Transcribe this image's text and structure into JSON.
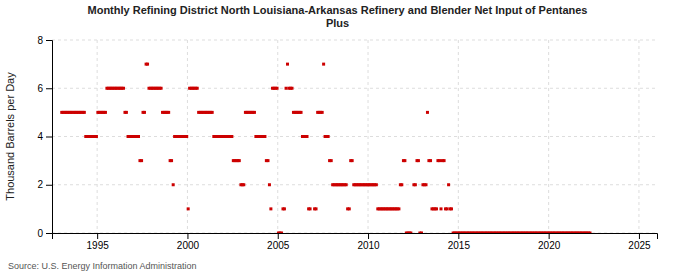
{
  "chart_data": {
    "type": "scatter",
    "title": "Monthly Refining District North Louisiana-Arkansas Refinery and Blender Net Input of Pentanes\nPlus",
    "ylabel": "Thousand Barrels per Day",
    "annotations": [
      "Source: U.S. Energy Information Administration"
    ],
    "color": "#cc0000",
    "marker": "square",
    "grid": true,
    "xlim": [
      1992.5,
      2026
    ],
    "ylim": [
      0,
      8
    ],
    "xticks": [
      1995,
      2000,
      2005,
      2010,
      2015,
      2020,
      2025
    ],
    "yticks": [
      0,
      2,
      4,
      6,
      8
    ],
    "x": [
      1993.04,
      1993.12,
      1993.21,
      1993.29,
      1993.37,
      1993.46,
      1993.54,
      1993.62,
      1993.71,
      1993.79,
      1993.87,
      1993.96,
      1994.04,
      1994.12,
      1994.21,
      1994.29,
      1994.37,
      1994.46,
      1994.54,
      1994.62,
      1994.71,
      1994.79,
      1994.87,
      1994.96,
      1995.04,
      1995.12,
      1995.21,
      1995.29,
      1995.37,
      1995.46,
      1995.54,
      1995.62,
      1995.71,
      1995.79,
      1995.87,
      1995.96,
      1996.04,
      1996.12,
      1996.21,
      1996.29,
      1996.37,
      1996.46,
      1996.54,
      1996.62,
      1996.71,
      1996.79,
      1996.87,
      1996.96,
      1997.04,
      1997.12,
      1997.21,
      1997.29,
      1997.37,
      1997.46,
      1997.54,
      1997.62,
      1997.71,
      1997.79,
      1997.87,
      1997.96,
      1998.04,
      1998.12,
      1998.21,
      1998.29,
      1998.37,
      1998.46,
      1998.54,
      1998.62,
      1998.71,
      1998.79,
      1998.87,
      1998.96,
      1999.04,
      1999.12,
      1999.21,
      1999.29,
      1999.37,
      1999.46,
      1999.54,
      1999.62,
      1999.71,
      1999.79,
      1999.87,
      1999.96,
      2000.04,
      2000.12,
      2000.21,
      2000.29,
      2000.37,
      2000.46,
      2000.54,
      2000.62,
      2000.71,
      2000.79,
      2000.87,
      2000.96,
      2001.04,
      2001.12,
      2001.21,
      2001.29,
      2001.37,
      2001.46,
      2001.54,
      2001.62,
      2001.71,
      2001.79,
      2001.87,
      2001.96,
      2002.04,
      2002.12,
      2002.21,
      2002.29,
      2002.37,
      2002.46,
      2002.54,
      2002.62,
      2002.71,
      2002.79,
      2002.87,
      2002.96,
      2003.04,
      2003.12,
      2003.21,
      2003.29,
      2003.37,
      2003.46,
      2003.54,
      2003.62,
      2003.71,
      2003.79,
      2003.87,
      2003.96,
      2004.04,
      2004.12,
      2004.21,
      2004.29,
      2004.37,
      2004.46,
      2004.54,
      2004.62,
      2004.71,
      2004.79,
      2004.87,
      2004.96,
      2005.04,
      2005.12,
      2005.21,
      2005.29,
      2005.37,
      2005.46,
      2005.54,
      2005.62,
      2005.71,
      2005.79,
      2005.87,
      2005.96,
      2006.04,
      2006.12,
      2006.21,
      2006.29,
      2006.37,
      2006.46,
      2006.54,
      2006.62,
      2006.71,
      2006.79,
      2007.04,
      2007.12,
      2007.21,
      2007.29,
      2007.37,
      2007.46,
      2007.54,
      2007.62,
      2007.71,
      2007.79,
      2007.87,
      2007.96,
      2008.04,
      2008.12,
      2008.21,
      2008.29,
      2008.37,
      2008.46,
      2008.54,
      2008.62,
      2008.71,
      2008.79,
      2008.87,
      2008.96,
      2009.04,
      2009.12,
      2009.21,
      2009.29,
      2009.37,
      2009.46,
      2009.54,
      2009.62,
      2009.71,
      2009.79,
      2009.87,
      2009.96,
      2010.04,
      2010.12,
      2010.21,
      2010.29,
      2010.37,
      2010.46,
      2010.54,
      2010.62,
      2010.71,
      2010.79,
      2010.87,
      2010.96,
      2011.04,
      2011.12,
      2011.21,
      2011.29,
      2011.37,
      2011.46,
      2011.54,
      2011.62,
      2011.71,
      2011.79,
      2011.87,
      2011.96,
      2012.04,
      2012.12,
      2012.21,
      2012.29,
      2012.37,
      2012.54,
      2012.62,
      2012.71,
      2012.79,
      2012.87,
      2012.96,
      2013.04,
      2013.12,
      2013.21,
      2013.29,
      2013.37,
      2013.46,
      2013.54,
      2013.62,
      2013.71,
      2013.79,
      2013.87,
      2013.96,
      2014.04,
      2014.12,
      2014.21,
      2014.29,
      2014.37,
      2014.46,
      2014.54,
      2014.62,
      2014.71,
      2014.79,
      2014.87,
      2014.96,
      2015.04,
      2015.12,
      2015.21,
      2015.29,
      2015.37,
      2015.46,
      2015.54,
      2015.62,
      2015.71,
      2015.79,
      2015.87,
      2015.96,
      2016.04,
      2016.12,
      2016.21,
      2016.29,
      2016.37,
      2016.46,
      2016.54,
      2016.62,
      2016.71,
      2016.79,
      2016.87,
      2016.96,
      2017.04,
      2017.12,
      2017.21,
      2017.29,
      2017.37,
      2017.46,
      2017.54,
      2017.62,
      2017.71,
      2017.79,
      2017.87,
      2017.96,
      2018.04,
      2018.12,
      2018.21,
      2018.29,
      2018.37,
      2018.46,
      2018.54,
      2018.62,
      2018.71,
      2018.79,
      2018.87,
      2018.96,
      2019.04,
      2019.12,
      2019.21,
      2019.29,
      2019.37,
      2019.46,
      2019.54,
      2019.62,
      2019.71,
      2019.79,
      2019.87,
      2019.96,
      2020.04,
      2020.12,
      2020.21,
      2020.29,
      2020.37,
      2020.46,
      2020.54,
      2020.62,
      2020.71,
      2020.79,
      2020.87,
      2020.96,
      2021.04,
      2021.12,
      2021.21,
      2021.29,
      2021.37,
      2021.46,
      2021.54,
      2021.62,
      2021.71,
      2021.79,
      2021.87,
      2021.96,
      2022.04,
      2022.12,
      2022.21,
      2022.29
    ],
    "values": [
      5,
      5,
      5,
      5,
      5,
      5,
      5,
      5,
      5,
      5,
      5,
      5,
      5,
      5,
      5,
      5,
      4,
      4,
      4,
      4,
      4,
      4,
      4,
      4,
      5,
      5,
      5,
      5,
      5,
      5,
      6,
      6,
      6,
      6,
      6,
      6,
      6,
      6,
      6,
      6,
      6,
      6,
      5,
      5,
      4,
      4,
      4,
      4,
      4,
      4,
      4,
      4,
      3,
      3,
      5,
      5,
      7,
      7,
      6,
      6,
      6,
      6,
      6,
      6,
      6,
      6,
      6,
      5,
      5,
      5,
      5,
      5,
      3,
      3,
      2,
      4,
      4,
      4,
      4,
      4,
      4,
      4,
      4,
      4,
      1,
      6,
      6,
      6,
      6,
      6,
      6,
      5,
      5,
      5,
      5,
      5,
      5,
      5,
      5,
      5,
      5,
      4,
      4,
      4,
      4,
      4,
      4,
      4,
      4,
      4,
      4,
      4,
      4,
      4,
      3,
      3,
      3,
      3,
      3,
      2,
      2,
      2,
      5,
      5,
      5,
      5,
      5,
      5,
      5,
      4,
      4,
      4,
      4,
      4,
      4,
      4,
      3,
      3,
      2,
      1,
      6,
      6,
      6,
      6,
      0,
      0,
      0,
      1,
      1,
      6,
      7,
      6,
      6,
      6,
      5,
      5,
      5,
      5,
      5,
      5,
      4,
      4,
      4,
      4,
      1,
      1,
      1,
      1,
      5,
      5,
      5,
      5,
      7,
      4,
      4,
      4,
      3,
      3,
      2,
      2,
      2,
      2,
      2,
      2,
      2,
      2,
      2,
      2,
      1,
      1,
      3,
      3,
      2,
      2,
      2,
      2,
      2,
      2,
      2,
      2,
      2,
      2,
      2,
      2,
      2,
      2,
      2,
      2,
      1,
      1,
      1,
      1,
      1,
      1,
      1,
      1,
      1,
      1,
      1,
      1,
      1,
      1,
      1,
      2,
      2,
      3,
      3,
      0,
      0,
      0,
      0,
      2,
      2,
      3,
      3,
      0,
      0,
      2,
      2,
      2,
      5,
      3,
      3,
      1,
      1,
      1,
      1,
      3,
      3,
      1,
      3,
      3,
      1,
      1,
      2,
      1,
      1,
      0,
      0,
      0,
      0,
      0,
      0,
      0,
      0,
      0,
      0,
      0,
      0,
      0,
      0,
      0,
      0,
      0,
      0,
      0,
      0,
      0,
      0,
      0,
      0,
      0,
      0,
      0,
      0,
      0,
      0,
      0,
      0,
      0,
      0,
      0,
      0,
      0,
      0,
      0,
      0,
      0,
      0,
      0,
      0,
      0,
      0,
      0,
      0,
      0,
      0,
      0,
      0,
      0,
      0,
      0,
      0,
      0,
      0,
      0,
      0,
      0,
      0,
      0,
      0,
      0,
      0,
      0,
      0,
      0,
      0,
      0,
      0,
      0,
      0,
      0,
      0,
      0,
      0,
      0,
      0,
      0,
      0,
      0,
      0,
      0,
      0,
      0,
      0,
      0,
      0,
      0,
      0
    ]
  }
}
